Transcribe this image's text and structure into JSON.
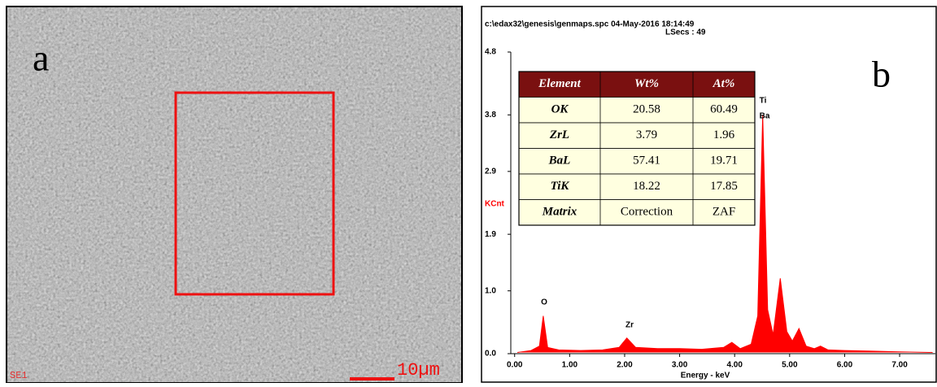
{
  "panel_a": {
    "label": "a",
    "detector": "SE1",
    "scale": "10µm"
  },
  "chart_data": {
    "type": "area",
    "label": "b",
    "header": "c:\\edax32\\genesis\\genmaps.spc  04-May-2016 18:14:49",
    "subheader": "LSecs : 49",
    "x_label": "Energy - keV",
    "y_label": "KCnt",
    "color": "#ff0000",
    "x": [
      0.05,
      0.3,
      0.45,
      0.52,
      0.6,
      0.8,
      1.2,
      1.6,
      1.9,
      2.04,
      2.2,
      2.6,
      3.0,
      3.4,
      3.8,
      3.95,
      4.1,
      4.3,
      4.42,
      4.51,
      4.6,
      4.7,
      4.83,
      4.95,
      5.05,
      5.17,
      5.3,
      5.45,
      5.56,
      5.7,
      6.0,
      6.5,
      7.0,
      7.6
    ],
    "values": [
      0.02,
      0.05,
      0.12,
      0.6,
      0.1,
      0.06,
      0.05,
      0.06,
      0.1,
      0.25,
      0.1,
      0.08,
      0.08,
      0.07,
      0.1,
      0.18,
      0.08,
      0.15,
      0.6,
      3.8,
      0.7,
      0.3,
      1.2,
      0.35,
      0.2,
      0.4,
      0.12,
      0.08,
      0.12,
      0.06,
      0.05,
      0.04,
      0.03,
      0.02
    ],
    "annotations": [
      "O",
      "Zr",
      "Ti",
      "Ba"
    ],
    "xlim": [
      -0.07,
      7.65
    ],
    "ylim": [
      0,
      4.8
    ],
    "xticks": [
      {
        "value": 0,
        "label": "0.00"
      },
      {
        "value": 1,
        "label": "1.00"
      },
      {
        "value": 2,
        "label": "2.00"
      },
      {
        "value": 3,
        "label": "3.00"
      },
      {
        "value": 4,
        "label": "4.00"
      },
      {
        "value": 5,
        "label": "5.00"
      },
      {
        "value": 6,
        "label": "6.00"
      },
      {
        "value": 7,
        "label": "7.00"
      }
    ],
    "yticks": [
      {
        "value": 0,
        "label": "0.0"
      },
      {
        "value": 1,
        "label": "1.0"
      },
      1.9,
      2.9,
      3.8,
      4.8
    ],
    "table": {
      "header": [
        "Element",
        "Wt%",
        "At%"
      ],
      "rows": [
        [
          "OK",
          20.58,
          60.49
        ],
        [
          "ZrL",
          3.79,
          1.96
        ],
        [
          "BaL",
          57.41,
          19.71
        ],
        [
          "TiK",
          18.22,
          17.85
        ],
        [
          "Matrix",
          "Correction",
          "ZAF"
        ]
      ]
    }
  }
}
